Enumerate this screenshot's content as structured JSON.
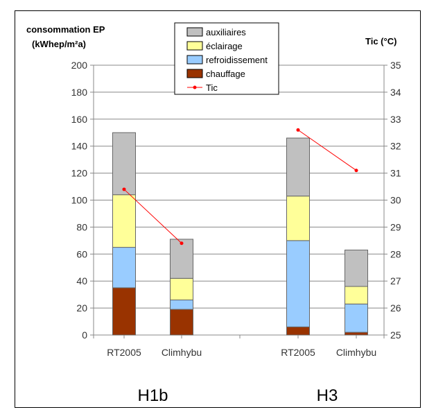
{
  "chart_data": {
    "type": "bar",
    "stacked": true,
    "ylabel_line1": "consommation EP",
    "ylabel_line2": "(kWhep/m²a)",
    "y2label": "Tic (°C)",
    "ylim": [
      0,
      200
    ],
    "yticks": [
      0,
      20,
      40,
      60,
      80,
      100,
      120,
      140,
      160,
      180,
      200
    ],
    "y2lim": [
      25,
      35
    ],
    "y2ticks": [
      25,
      26,
      27,
      28,
      29,
      30,
      31,
      32,
      33,
      34,
      35
    ],
    "grid": true,
    "legend_position": "top-center",
    "categories": [
      "RT2005",
      "Climhybu",
      "RT2005",
      "Climhybu"
    ],
    "groups": [
      {
        "label": "H1b",
        "categories": [
          0,
          1
        ]
      },
      {
        "label": "H3",
        "categories": [
          2,
          3
        ]
      }
    ],
    "series": [
      {
        "name": "chauffage",
        "color": "#993300",
        "values": [
          35,
          19,
          6,
          2
        ]
      },
      {
        "name": "refroidissement",
        "color": "#99ccff",
        "values": [
          30,
          7,
          64,
          21
        ]
      },
      {
        "name": "éclairage",
        "color": "#ffff99",
        "values": [
          39,
          16,
          33,
          13
        ]
      },
      {
        "name": "auxiliaires",
        "color": "#c0c0c0",
        "values": [
          46,
          29,
          43,
          27
        ]
      }
    ],
    "line_series": {
      "name": "Tic",
      "color": "#ff0000",
      "axis": "right",
      "segments": [
        [
          30.4,
          28.4
        ],
        [
          32.6,
          31.1
        ]
      ]
    },
    "legend": [
      {
        "name": "auxiliaires",
        "color": "#c0c0c0",
        "kind": "box"
      },
      {
        "name": "éclairage",
        "color": "#ffff99",
        "kind": "box"
      },
      {
        "name": "refroidissement",
        "color": "#99ccff",
        "kind": "box"
      },
      {
        "name": "chauffage",
        "color": "#993300",
        "kind": "box"
      },
      {
        "name": "Tic",
        "color": "#ff0000",
        "kind": "line"
      }
    ]
  }
}
